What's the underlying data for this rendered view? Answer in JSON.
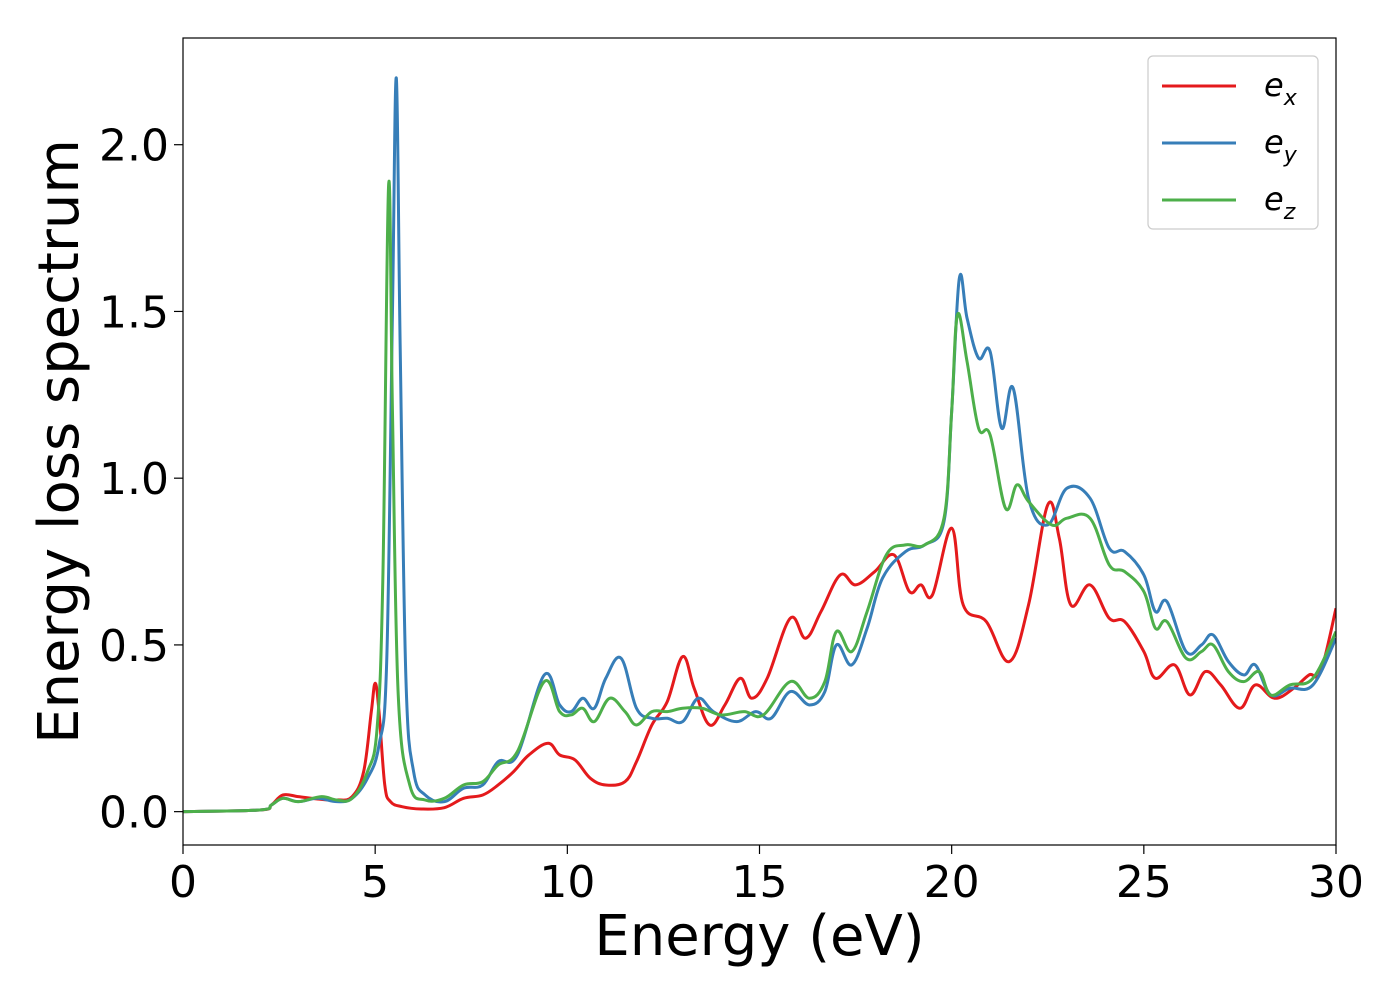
{
  "chart_data": {
    "type": "line",
    "title": "",
    "xlabel": "Energy (eV)",
    "ylabel": "Energy loss spectrum",
    "xlim": [
      0,
      30
    ],
    "ylim": [
      -0.1,
      2.32
    ],
    "xticks": [
      0,
      5,
      10,
      15,
      20,
      25,
      30
    ],
    "xtick_labels": [
      "0",
      "5",
      "10",
      "15",
      "20",
      "25",
      "30"
    ],
    "yticks": [
      0.0,
      0.5,
      1.0,
      1.5,
      2.0
    ],
    "ytick_labels": [
      "0.0",
      "0.5",
      "1.0",
      "1.5",
      "2.0"
    ],
    "grid": false,
    "legend_position": "top-right",
    "series": [
      {
        "name": "e",
        "subscript": "x",
        "color": "#e41a1c",
        "points": [
          [
            0,
            0
          ],
          [
            2,
            0.005
          ],
          [
            2.3,
            0.02
          ],
          [
            2.6,
            0.05
          ],
          [
            3,
            0.045
          ],
          [
            3.5,
            0.038
          ],
          [
            4,
            0.035
          ],
          [
            4.4,
            0.045
          ],
          [
            4.7,
            0.12
          ],
          [
            4.9,
            0.3
          ],
          [
            5.0,
            0.385
          ],
          [
            5.1,
            0.3
          ],
          [
            5.25,
            0.08
          ],
          [
            5.4,
            0.03
          ],
          [
            5.7,
            0.015
          ],
          [
            6.2,
            0.008
          ],
          [
            6.8,
            0.012
          ],
          [
            7.3,
            0.04
          ],
          [
            7.8,
            0.05
          ],
          [
            8.2,
            0.08
          ],
          [
            8.6,
            0.12
          ],
          [
            9.0,
            0.17
          ],
          [
            9.5,
            0.205
          ],
          [
            9.8,
            0.17
          ],
          [
            10.2,
            0.155
          ],
          [
            10.6,
            0.1
          ],
          [
            11.0,
            0.08
          ],
          [
            11.5,
            0.09
          ],
          [
            11.8,
            0.15
          ],
          [
            12.2,
            0.26
          ],
          [
            12.6,
            0.33
          ],
          [
            13.0,
            0.465
          ],
          [
            13.3,
            0.37
          ],
          [
            13.7,
            0.26
          ],
          [
            14.1,
            0.32
          ],
          [
            14.5,
            0.4
          ],
          [
            14.8,
            0.34
          ],
          [
            15.2,
            0.4
          ],
          [
            15.8,
            0.58
          ],
          [
            16.2,
            0.52
          ],
          [
            16.6,
            0.6
          ],
          [
            17.1,
            0.71
          ],
          [
            17.5,
            0.68
          ],
          [
            18.0,
            0.72
          ],
          [
            18.5,
            0.77
          ],
          [
            18.9,
            0.66
          ],
          [
            19.2,
            0.68
          ],
          [
            19.5,
            0.65
          ],
          [
            20.0,
            0.85
          ],
          [
            20.3,
            0.62
          ],
          [
            20.9,
            0.57
          ],
          [
            21.5,
            0.45
          ],
          [
            22.0,
            0.62
          ],
          [
            22.5,
            0.92
          ],
          [
            22.8,
            0.82
          ],
          [
            23.1,
            0.62
          ],
          [
            23.6,
            0.68
          ],
          [
            24.1,
            0.58
          ],
          [
            24.5,
            0.57
          ],
          [
            25.0,
            0.48
          ],
          [
            25.3,
            0.4
          ],
          [
            25.8,
            0.44
          ],
          [
            26.2,
            0.35
          ],
          [
            26.6,
            0.42
          ],
          [
            27.0,
            0.38
          ],
          [
            27.5,
            0.31
          ],
          [
            27.9,
            0.38
          ],
          [
            28.4,
            0.34
          ],
          [
            28.9,
            0.37
          ],
          [
            29.3,
            0.41
          ],
          [
            29.6,
            0.42
          ],
          [
            30.0,
            0.61
          ]
        ]
      },
      {
        "name": "e",
        "subscript": "y",
        "color": "#377eb8",
        "points": [
          [
            0,
            0
          ],
          [
            2,
            0.005
          ],
          [
            2.3,
            0.02
          ],
          [
            2.6,
            0.04
          ],
          [
            3,
            0.03
          ],
          [
            3.5,
            0.04
          ],
          [
            4.0,
            0.03
          ],
          [
            4.4,
            0.04
          ],
          [
            4.8,
            0.1
          ],
          [
            5.1,
            0.2
          ],
          [
            5.3,
            0.45
          ],
          [
            5.45,
            1.5
          ],
          [
            5.55,
            2.2
          ],
          [
            5.65,
            1.4
          ],
          [
            5.8,
            0.4
          ],
          [
            6.0,
            0.12
          ],
          [
            6.3,
            0.05
          ],
          [
            6.8,
            0.03
          ],
          [
            7.3,
            0.07
          ],
          [
            7.8,
            0.08
          ],
          [
            8.2,
            0.15
          ],
          [
            8.7,
            0.17
          ],
          [
            9.4,
            0.41
          ],
          [
            9.8,
            0.32
          ],
          [
            10.1,
            0.3
          ],
          [
            10.4,
            0.34
          ],
          [
            10.7,
            0.31
          ],
          [
            11.0,
            0.4
          ],
          [
            11.4,
            0.46
          ],
          [
            11.8,
            0.31
          ],
          [
            12.2,
            0.28
          ],
          [
            12.6,
            0.28
          ],
          [
            13.0,
            0.27
          ],
          [
            13.4,
            0.34
          ],
          [
            13.8,
            0.3
          ],
          [
            14.4,
            0.27
          ],
          [
            14.9,
            0.3
          ],
          [
            15.3,
            0.28
          ],
          [
            15.8,
            0.36
          ],
          [
            16.3,
            0.32
          ],
          [
            16.7,
            0.36
          ],
          [
            17.0,
            0.5
          ],
          [
            17.4,
            0.44
          ],
          [
            17.8,
            0.55
          ],
          [
            18.2,
            0.7
          ],
          [
            18.8,
            0.78
          ],
          [
            19.3,
            0.8
          ],
          [
            19.8,
            0.87
          ],
          [
            20.0,
            1.2
          ],
          [
            20.2,
            1.6
          ],
          [
            20.4,
            1.48
          ],
          [
            20.7,
            1.36
          ],
          [
            21.0,
            1.38
          ],
          [
            21.3,
            1.15
          ],
          [
            21.6,
            1.27
          ],
          [
            22.0,
            0.94
          ],
          [
            22.5,
            0.86
          ],
          [
            23.0,
            0.97
          ],
          [
            23.6,
            0.94
          ],
          [
            24.1,
            0.79
          ],
          [
            24.5,
            0.78
          ],
          [
            25.0,
            0.71
          ],
          [
            25.3,
            0.6
          ],
          [
            25.6,
            0.63
          ],
          [
            26.1,
            0.48
          ],
          [
            26.5,
            0.5
          ],
          [
            26.8,
            0.53
          ],
          [
            27.2,
            0.45
          ],
          [
            27.6,
            0.41
          ],
          [
            27.9,
            0.44
          ],
          [
            28.3,
            0.35
          ],
          [
            28.8,
            0.37
          ],
          [
            29.4,
            0.38
          ],
          [
            30.0,
            0.52
          ]
        ]
      },
      {
        "name": "e",
        "subscript": "z",
        "color": "#4daf4a",
        "points": [
          [
            0,
            0
          ],
          [
            2,
            0.005
          ],
          [
            2.3,
            0.02
          ],
          [
            2.6,
            0.04
          ],
          [
            3,
            0.03
          ],
          [
            3.6,
            0.045
          ],
          [
            4.0,
            0.035
          ],
          [
            4.4,
            0.04
          ],
          [
            4.8,
            0.12
          ],
          [
            5.05,
            0.25
          ],
          [
            5.2,
            0.7
          ],
          [
            5.35,
            1.88
          ],
          [
            5.45,
            1.2
          ],
          [
            5.6,
            0.35
          ],
          [
            5.9,
            0.08
          ],
          [
            6.3,
            0.035
          ],
          [
            6.8,
            0.04
          ],
          [
            7.3,
            0.08
          ],
          [
            7.8,
            0.09
          ],
          [
            8.2,
            0.14
          ],
          [
            8.7,
            0.18
          ],
          [
            9.4,
            0.39
          ],
          [
            9.8,
            0.3
          ],
          [
            10.1,
            0.29
          ],
          [
            10.4,
            0.31
          ],
          [
            10.7,
            0.27
          ],
          [
            11.1,
            0.34
          ],
          [
            11.5,
            0.3
          ],
          [
            11.8,
            0.26
          ],
          [
            12.2,
            0.3
          ],
          [
            12.6,
            0.3
          ],
          [
            13.0,
            0.31
          ],
          [
            13.5,
            0.31
          ],
          [
            14.0,
            0.29
          ],
          [
            14.6,
            0.3
          ],
          [
            15.1,
            0.29
          ],
          [
            15.8,
            0.39
          ],
          [
            16.3,
            0.34
          ],
          [
            16.7,
            0.39
          ],
          [
            17.0,
            0.54
          ],
          [
            17.4,
            0.48
          ],
          [
            17.8,
            0.6
          ],
          [
            18.3,
            0.77
          ],
          [
            18.8,
            0.8
          ],
          [
            19.3,
            0.8
          ],
          [
            19.8,
            0.88
          ],
          [
            20.0,
            1.2
          ],
          [
            20.15,
            1.49
          ],
          [
            20.4,
            1.35
          ],
          [
            20.7,
            1.15
          ],
          [
            21.0,
            1.13
          ],
          [
            21.4,
            0.91
          ],
          [
            21.7,
            0.98
          ],
          [
            22.0,
            0.93
          ],
          [
            22.6,
            0.86
          ],
          [
            23.0,
            0.88
          ],
          [
            23.6,
            0.88
          ],
          [
            24.1,
            0.74
          ],
          [
            24.5,
            0.72
          ],
          [
            25.0,
            0.66
          ],
          [
            25.3,
            0.55
          ],
          [
            25.6,
            0.57
          ],
          [
            26.1,
            0.46
          ],
          [
            26.5,
            0.48
          ],
          [
            26.8,
            0.5
          ],
          [
            27.2,
            0.42
          ],
          [
            27.6,
            0.39
          ],
          [
            28.0,
            0.42
          ],
          [
            28.3,
            0.35
          ],
          [
            28.8,
            0.38
          ],
          [
            29.4,
            0.4
          ],
          [
            30.0,
            0.54
          ]
        ]
      }
    ]
  }
}
